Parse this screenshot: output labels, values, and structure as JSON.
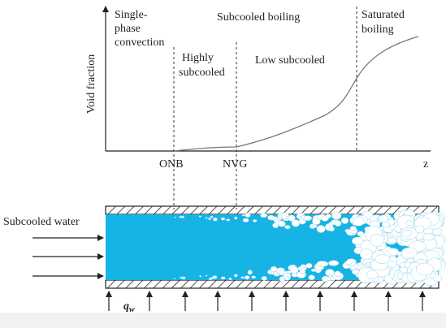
{
  "plot": {
    "y_axis_label": "Void fraction",
    "x_axis_label": "z",
    "region_labels": {
      "single_phase_line1": "Single-",
      "single_phase_line2": "phase",
      "single_phase_line3": "convection",
      "subcooled_boiling": "Subcooled boiling",
      "highly_line1": "Highly",
      "highly_line2": "subcooled",
      "low_subcooled": "Low subcooled",
      "saturated_line1": "Saturated",
      "saturated_line2": "boiling"
    },
    "point_labels": {
      "onb": "ONB",
      "nvg": "NVG"
    }
  },
  "pipe": {
    "inlet_label": "Subcooled water",
    "heat_flux_symbol": "q",
    "heat_flux_subscript": "w",
    "water_color": "#16b4e4",
    "wall_color": "#222222",
    "bubble_color": "#ffffff"
  }
}
